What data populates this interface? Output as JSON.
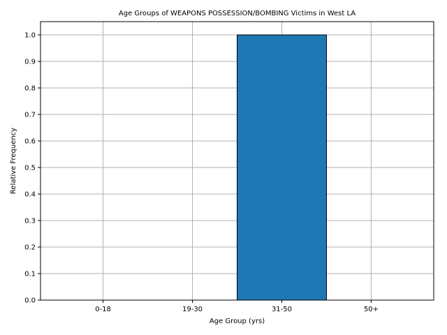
{
  "chart_data": {
    "type": "bar",
    "title": "Age Groups of WEAPONS POSSESSION/BOMBING Victims in West LA",
    "xlabel": "Age Group (yrs)",
    "ylabel": "Relative Frequency",
    "categories": [
      "0-18",
      "19-30",
      "31-50",
      "50+"
    ],
    "values": [
      0.0,
      0.0,
      1.0,
      0.0
    ],
    "ylim": [
      0,
      1.05
    ],
    "yticks": [
      "0.0",
      "0.1",
      "0.2",
      "0.3",
      "0.4",
      "0.5",
      "0.6",
      "0.7",
      "0.8",
      "0.9",
      "1.0"
    ],
    "grid": true,
    "bar_color": "#1f77b4",
    "edge_color": "#000000"
  }
}
